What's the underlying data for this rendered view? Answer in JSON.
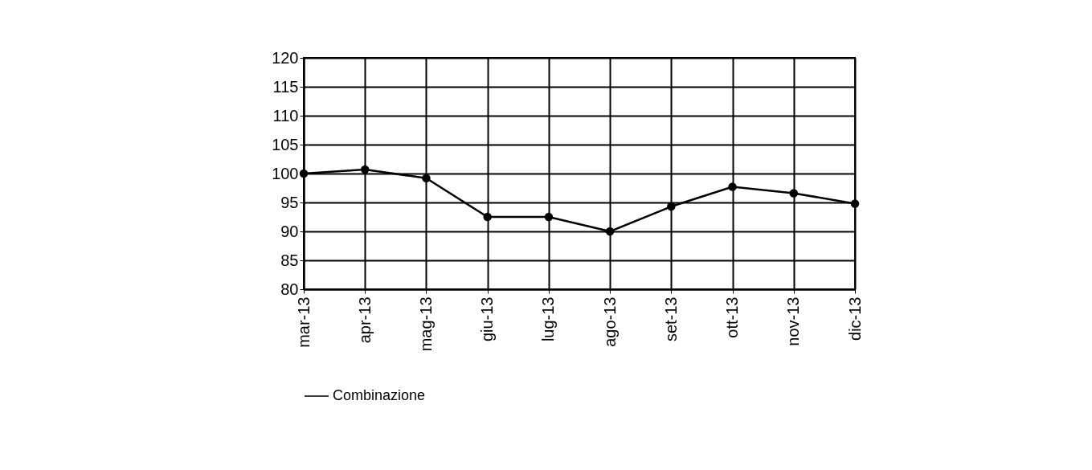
{
  "chart_data": {
    "type": "line",
    "categories": [
      "mar-13",
      "apr-13",
      "mag-13",
      "giu-13",
      "lug-13",
      "ago-13",
      "set-13",
      "ott-13",
      "nov-13",
      "dic-13"
    ],
    "series": [
      {
        "name": "Combinazione",
        "color": "#000000",
        "values": [
          100,
          100.7,
          99.2,
          92.5,
          92.5,
          90,
          94.3,
          97.7,
          96.6,
          94.8
        ]
      }
    ],
    "ylim": [
      80,
      120
    ],
    "yticks": [
      80,
      85,
      90,
      95,
      100,
      105,
      110,
      115,
      120
    ],
    "grid": true,
    "legend": "bottom",
    "marker": "circle",
    "line_style": "solid"
  }
}
